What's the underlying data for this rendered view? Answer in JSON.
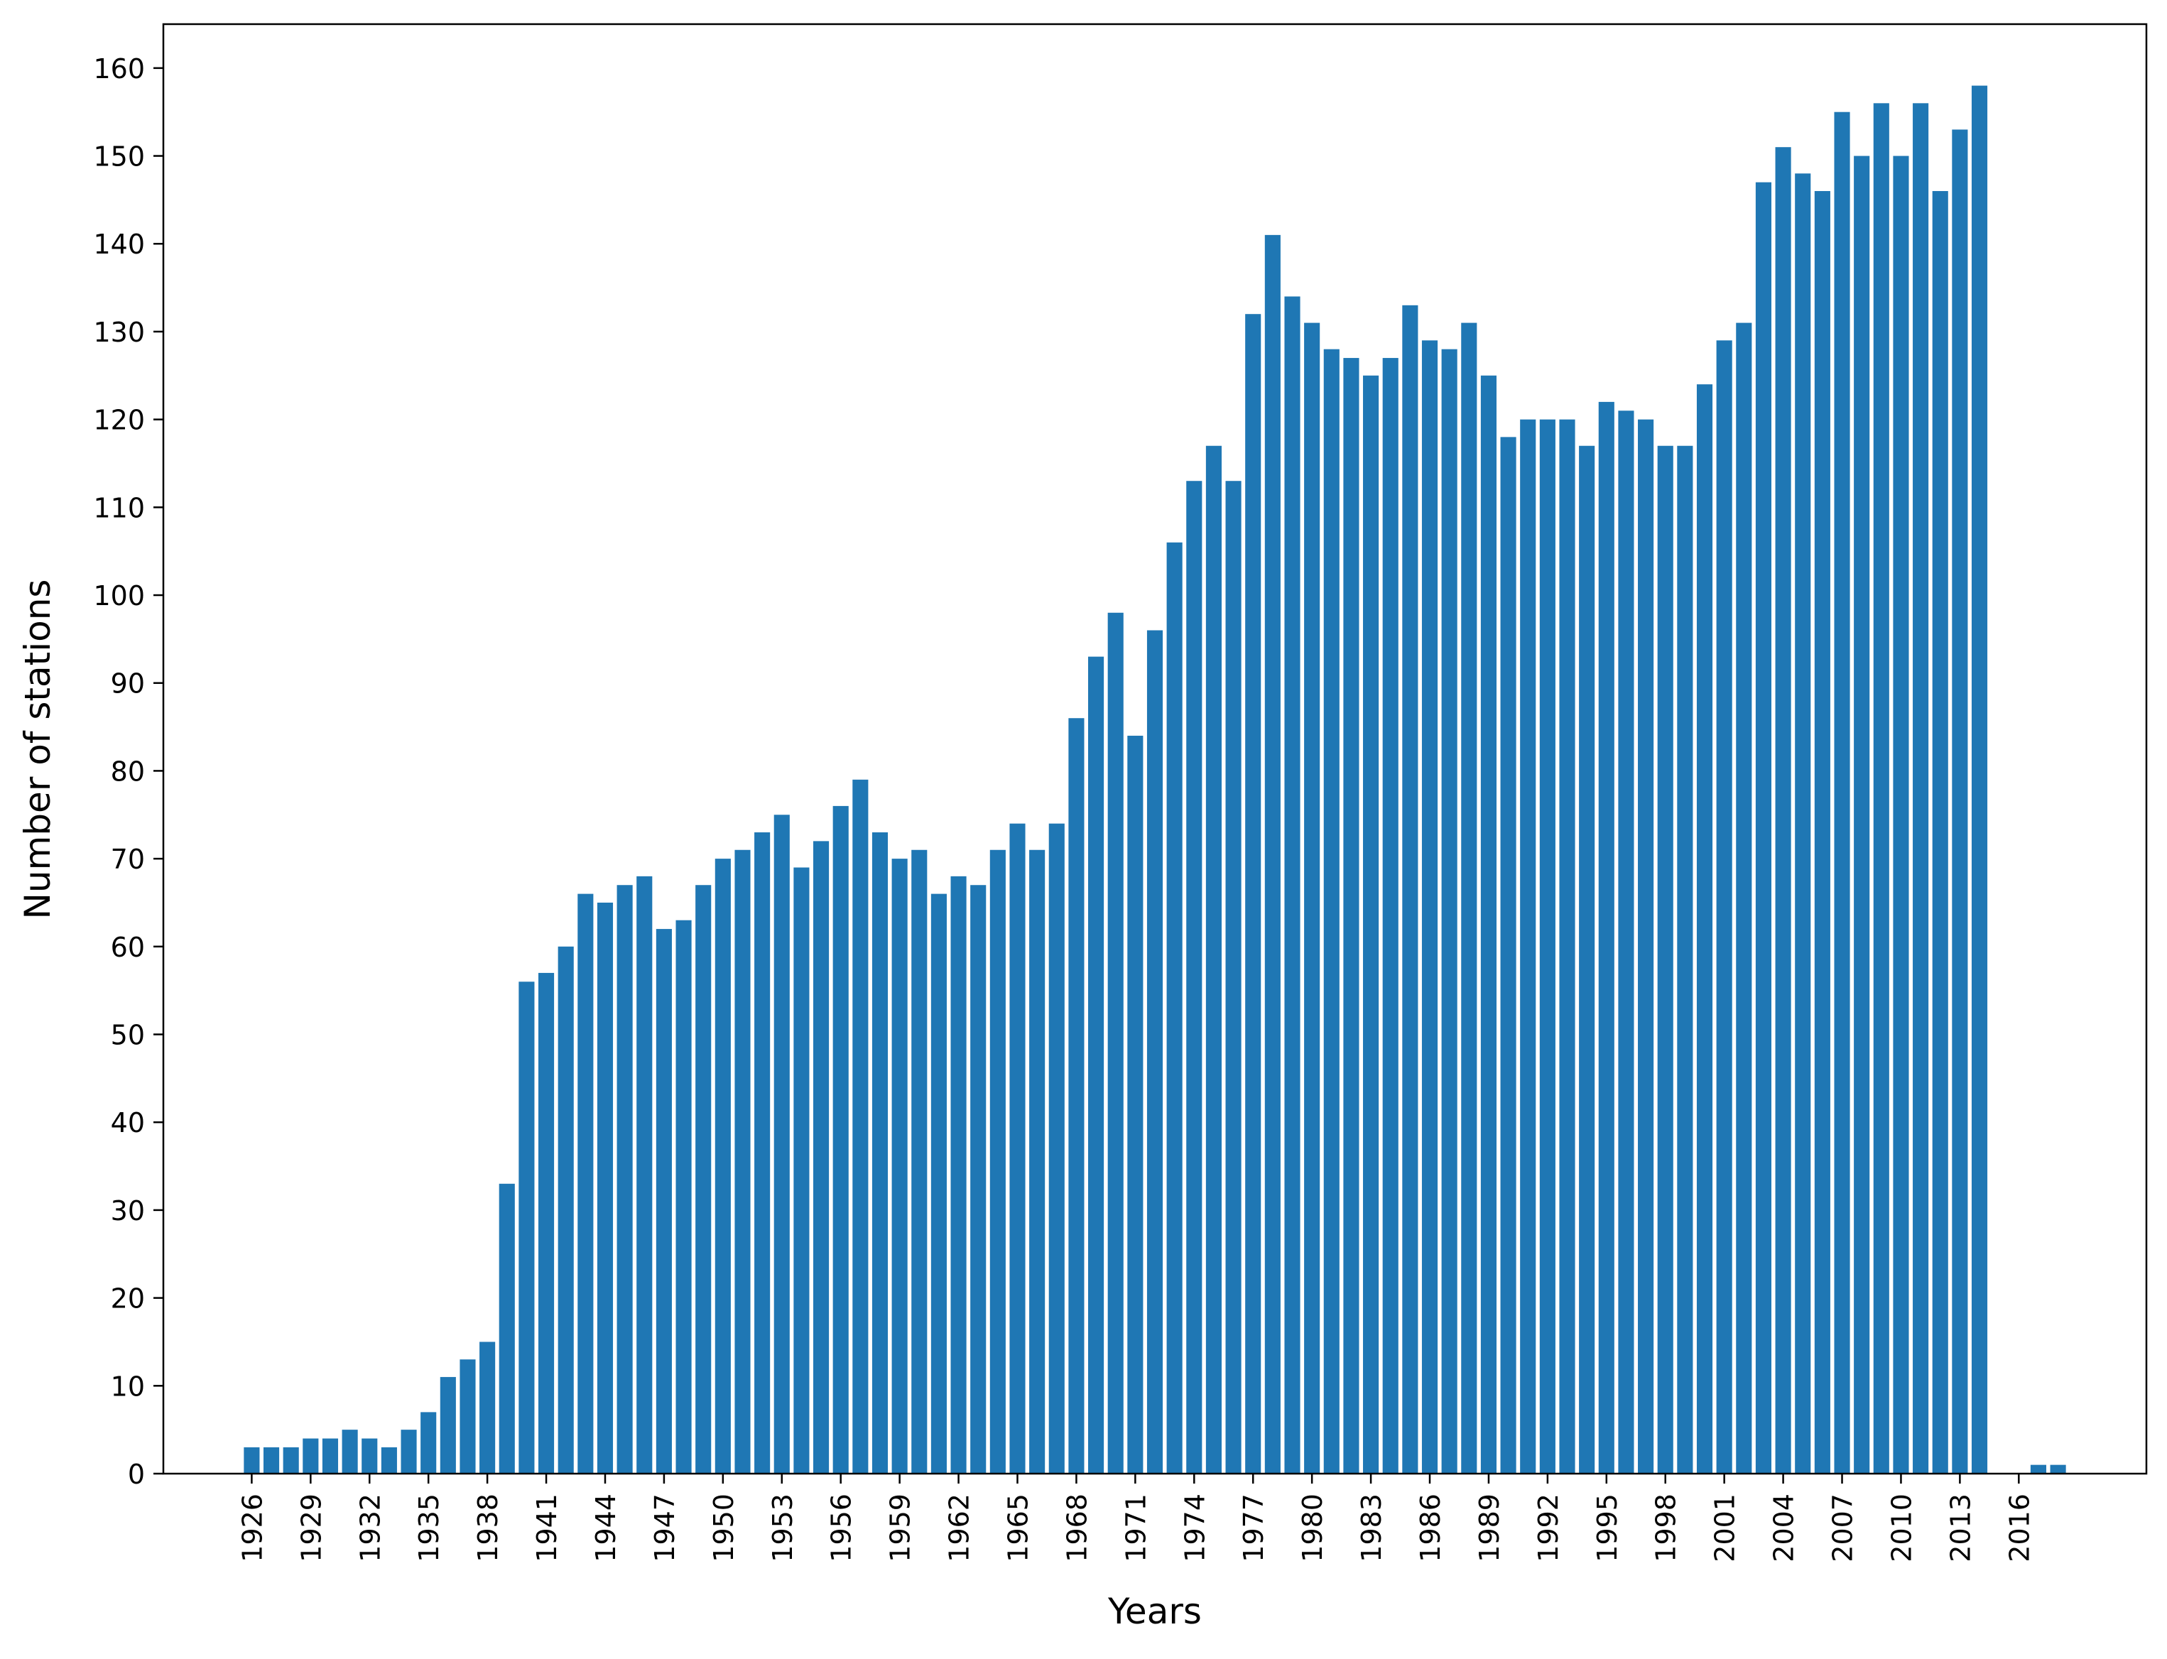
{
  "chart_data": {
    "type": "bar",
    "title": "",
    "xlabel": "Years",
    "ylabel": "Number of stations",
    "ylim": [
      0,
      165
    ],
    "yticks": [
      0,
      10,
      20,
      30,
      40,
      50,
      60,
      70,
      80,
      90,
      100,
      110,
      120,
      130,
      140,
      150,
      160
    ],
    "xtick_labels": [
      "1926",
      "1929",
      "1932",
      "1935",
      "1938",
      "1941",
      "1944",
      "1947",
      "1950",
      "1953",
      "1956",
      "1959",
      "1962",
      "1965",
      "1968",
      "1971",
      "1974",
      "1977",
      "1980",
      "1983",
      "1986",
      "1989",
      "1992",
      "1995",
      "1998",
      "2001",
      "2004",
      "2007",
      "2010",
      "2013",
      "2016"
    ],
    "bar_color": "#1f77b4",
    "grid": false,
    "categories": [
      1926,
      1927,
      1928,
      1929,
      1930,
      1931,
      1932,
      1933,
      1934,
      1935,
      1936,
      1937,
      1938,
      1939,
      1940,
      1941,
      1942,
      1943,
      1944,
      1945,
      1946,
      1947,
      1948,
      1949,
      1950,
      1951,
      1952,
      1953,
      1954,
      1955,
      1956,
      1957,
      1958,
      1959,
      1960,
      1961,
      1962,
      1963,
      1964,
      1965,
      1966,
      1967,
      1968,
      1969,
      1970,
      1971,
      1972,
      1973,
      1974,
      1975,
      1976,
      1977,
      1978,
      1979,
      1980,
      1981,
      1982,
      1983,
      1984,
      1985,
      1986,
      1987,
      1988,
      1989,
      1990,
      1991,
      1992,
      1993,
      1994,
      1995,
      1996,
      1997,
      1998,
      1999,
      2000,
      2001,
      2002,
      2003,
      2004,
      2005,
      2006,
      2007,
      2008,
      2009,
      2010,
      2011,
      2012,
      2013,
      2014,
      2017,
      2018
    ],
    "values": [
      3,
      3,
      3,
      4,
      4,
      5,
      4,
      3,
      5,
      7,
      11,
      13,
      15,
      33,
      56,
      57,
      60,
      66,
      65,
      67,
      68,
      62,
      63,
      67,
      70,
      71,
      73,
      75,
      69,
      72,
      76,
      79,
      73,
      70,
      71,
      66,
      68,
      67,
      71,
      74,
      71,
      74,
      86,
      93,
      98,
      84,
      96,
      106,
      113,
      117,
      113,
      132,
      141,
      134,
      131,
      128,
      127,
      125,
      127,
      133,
      129,
      128,
      131,
      125,
      118,
      120,
      120,
      120,
      117,
      122,
      121,
      120,
      117,
      117,
      124,
      129,
      131,
      147,
      151,
      148,
      146,
      155,
      150,
      156,
      150,
      156,
      146,
      153,
      158,
      1,
      1
    ]
  }
}
